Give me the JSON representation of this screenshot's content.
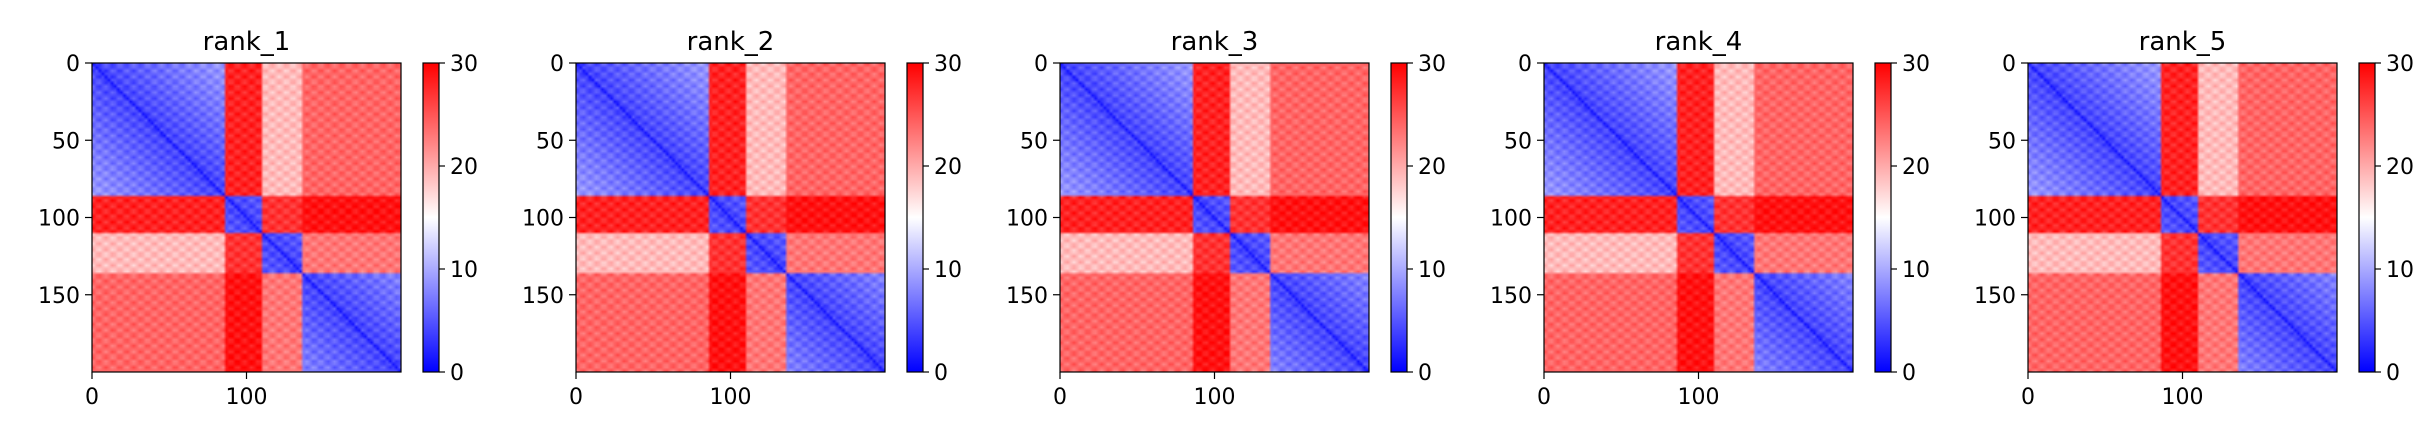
{
  "chart_data": [
    {
      "type": "heatmap",
      "title": "rank_1",
      "x_ticks": [
        0,
        100
      ],
      "y_ticks": [
        0,
        50,
        100,
        150
      ],
      "xlim": [
        0,
        200
      ],
      "ylim": [
        200,
        0
      ],
      "colorbar": {
        "ticks": [
          0,
          10,
          20,
          30
        ],
        "range": [
          0,
          30
        ],
        "cmap": "bwr"
      },
      "domain_profile": [
        {
          "range": [
            0,
            85
          ],
          "level": 2,
          "sep": true
        },
        {
          "range": [
            86,
            109
          ],
          "level": 4,
          "sep": true
        },
        {
          "range": [
            110,
            135
          ],
          "level": 1,
          "sep": false
        },
        {
          "range": [
            136,
            199
          ],
          "level": 3,
          "sep": true
        }
      ]
    },
    {
      "type": "heatmap",
      "title": "rank_2",
      "x_ticks": [
        0,
        100
      ],
      "y_ticks": [
        0,
        50,
        100,
        150
      ],
      "xlim": [
        0,
        200
      ],
      "ylim": [
        200,
        0
      ],
      "colorbar": {
        "ticks": [
          0,
          10,
          20,
          30
        ],
        "range": [
          0,
          30
        ],
        "cmap": "bwr"
      },
      "domain_profile": [
        {
          "range": [
            0,
            85
          ],
          "level": 2,
          "sep": true
        },
        {
          "range": [
            86,
            109
          ],
          "level": 4,
          "sep": true
        },
        {
          "range": [
            110,
            135
          ],
          "level": 1,
          "sep": false
        },
        {
          "range": [
            136,
            199
          ],
          "level": 3,
          "sep": true
        }
      ]
    },
    {
      "type": "heatmap",
      "title": "rank_3",
      "x_ticks": [
        0,
        100
      ],
      "y_ticks": [
        0,
        50,
        100,
        150
      ],
      "xlim": [
        0,
        200
      ],
      "ylim": [
        200,
        0
      ],
      "colorbar": {
        "ticks": [
          0,
          10,
          20,
          30
        ],
        "range": [
          0,
          30
        ],
        "cmap": "bwr"
      },
      "domain_profile": [
        {
          "range": [
            0,
            85
          ],
          "level": 2,
          "sep": true
        },
        {
          "range": [
            86,
            109
          ],
          "level": 4,
          "sep": true
        },
        {
          "range": [
            110,
            135
          ],
          "level": 1,
          "sep": false
        },
        {
          "range": [
            136,
            199
          ],
          "level": 3,
          "sep": true
        }
      ]
    },
    {
      "type": "heatmap",
      "title": "rank_4",
      "x_ticks": [
        0,
        100
      ],
      "y_ticks": [
        0,
        50,
        100,
        150
      ],
      "xlim": [
        0,
        200
      ],
      "ylim": [
        200,
        0
      ],
      "colorbar": {
        "ticks": [
          0,
          10,
          20,
          30
        ],
        "range": [
          0,
          30
        ],
        "cmap": "bwr"
      },
      "domain_profile": [
        {
          "range": [
            0,
            85
          ],
          "level": 2,
          "sep": true
        },
        {
          "range": [
            86,
            109
          ],
          "level": 4,
          "sep": true
        },
        {
          "range": [
            110,
            135
          ],
          "level": 1,
          "sep": false
        },
        {
          "range": [
            136,
            199
          ],
          "level": 3,
          "sep": true
        }
      ]
    },
    {
      "type": "heatmap",
      "title": "rank_5",
      "x_ticks": [
        0,
        100
      ],
      "y_ticks": [
        0,
        50,
        100,
        150
      ],
      "xlim": [
        0,
        200
      ],
      "ylim": [
        200,
        0
      ],
      "colorbar": {
        "ticks": [
          0,
          10,
          20,
          30
        ],
        "range": [
          0,
          30
        ],
        "cmap": "bwr"
      },
      "domain_profile": [
        {
          "range": [
            0,
            85
          ],
          "level": 2,
          "sep": true
        },
        {
          "range": [
            86,
            109
          ],
          "level": 4,
          "sep": true
        },
        {
          "range": [
            110,
            135
          ],
          "level": 1,
          "sep": false
        },
        {
          "range": [
            136,
            199
          ],
          "level": 3,
          "sep": true
        }
      ]
    }
  ]
}
